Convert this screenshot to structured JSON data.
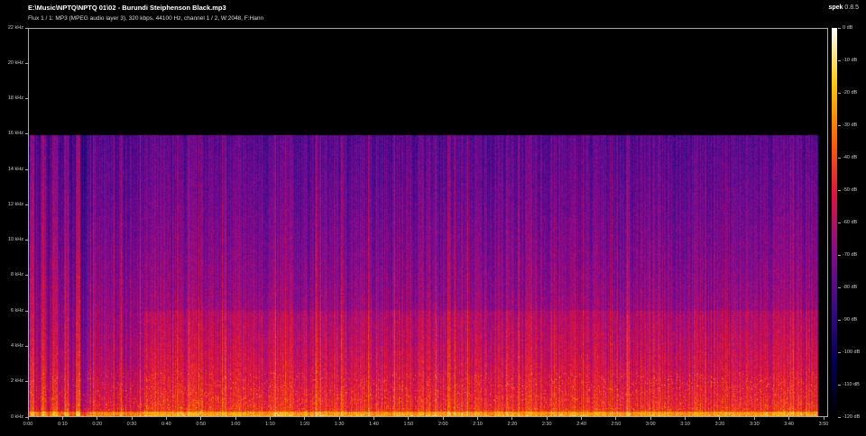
{
  "header": {
    "title": "E:\\Music\\NPTQ\\NPTQ 01\\02 - Burundi  Steiphenson Black.mp3",
    "subtitle": "Flux 1 / 1: MP3 (MPEG audio layer 3), 320 kbps, 44100 Hz, channel 1 / 2, W:2048, F:Hann",
    "app_name": "spek",
    "app_version": "0.8.5"
  },
  "chart_data": {
    "type": "heatmap",
    "xlabel": "",
    "ylabel": "",
    "x_unit": "time (m:ss)",
    "y_unit": "kHz",
    "xlim_seconds": [
      0,
      231
    ],
    "ylim_khz": [
      0,
      22
    ],
    "y_ticks": [
      "0 kHz",
      "2 kHz",
      "4 kHz",
      "6 kHz",
      "8 kHz",
      "10 kHz",
      "12 kHz",
      "14 kHz",
      "16 kHz",
      "18 kHz",
      "20 kHz",
      "22 kHz"
    ],
    "x_ticks": [
      "0:00",
      "0:10",
      "0:20",
      "0:30",
      "0:40",
      "0:50",
      "1:00",
      "1:10",
      "1:20",
      "1:30",
      "1:40",
      "1:50",
      "2:00",
      "2:10",
      "2:20",
      "2:30",
      "2:40",
      "2:50",
      "3:00",
      "3:10",
      "3:20",
      "3:30",
      "3:40",
      "3:50"
    ],
    "colorbar_ticks": [
      "0 dB",
      "-10 dB",
      "-20 dB",
      "-30 dB",
      "-40 dB",
      "-50 dB",
      "-60 dB",
      "-70 dB",
      "-80 dB",
      "-90 dB",
      "-100 dB",
      "-110 dB",
      "-120 dB"
    ],
    "colorbar_range_db": [
      -120,
      0
    ],
    "content_cutoff_khz": 16,
    "audio_end_seconds": 228,
    "palette": [
      "#000000",
      "#00005a",
      "#3c0a8c",
      "#8c0a8c",
      "#e0143c",
      "#ff6400",
      "#ffc800",
      "#ffffff"
    ]
  }
}
